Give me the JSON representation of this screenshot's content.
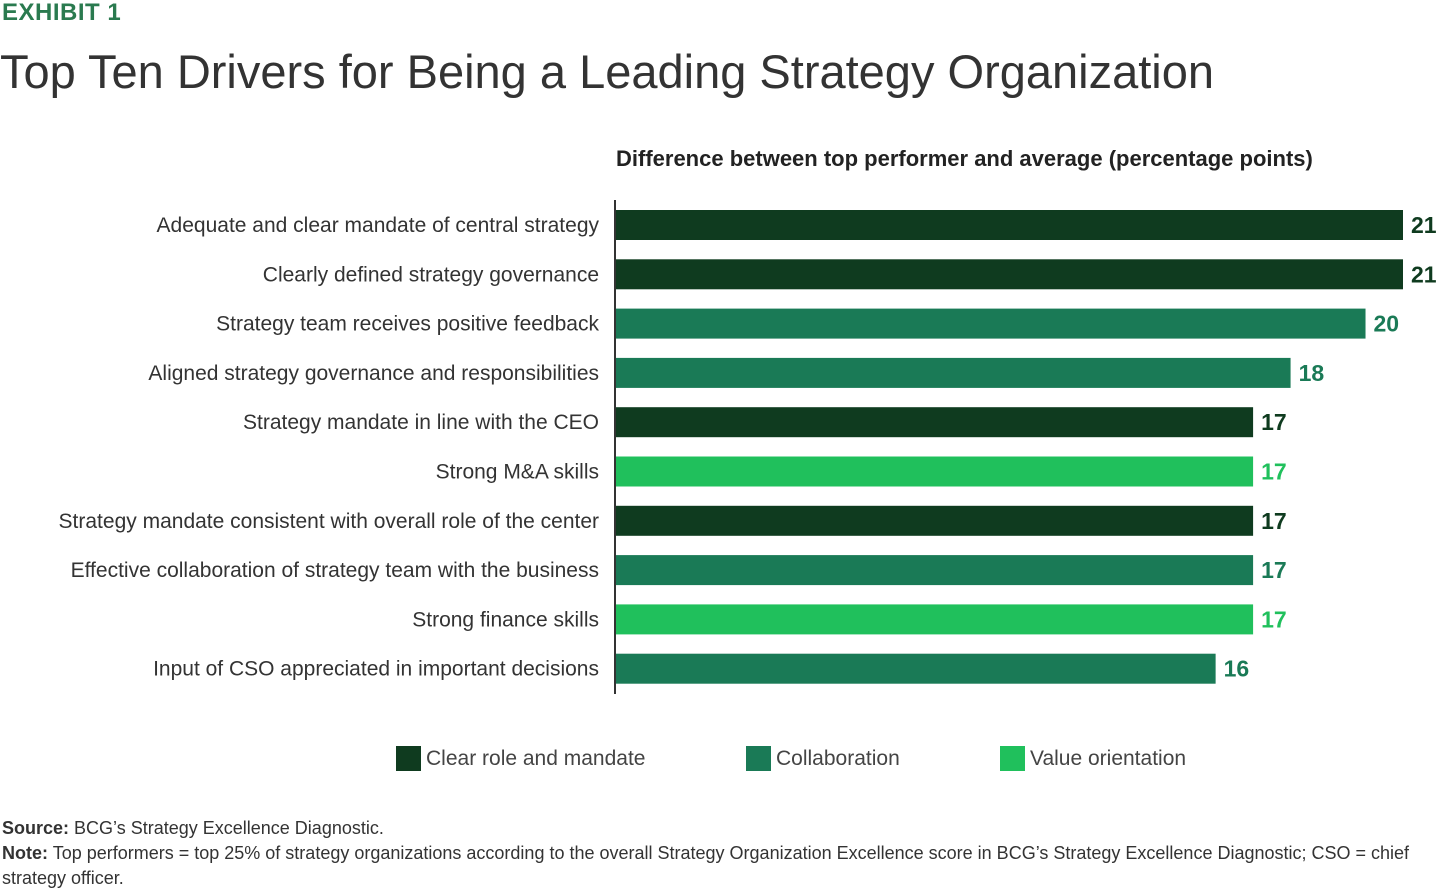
{
  "header": {
    "exhibit": "EXHIBIT 1",
    "title": "Top Ten Drivers for Being a Leading Strategy Organization"
  },
  "chart_data": {
    "type": "bar",
    "orientation": "horizontal",
    "title": "Difference between top performer and average (percentage points)",
    "xlabel": "",
    "ylabel": "",
    "xlim": [
      0,
      21
    ],
    "grid": false,
    "legend_position": "bottom",
    "categories": [
      "Adequate and clear mandate of central strategy",
      "Clearly defined strategy governance",
      "Strategy team receives positive feedback",
      "Aligned strategy governance and responsibilities",
      "Strategy mandate in line with the CEO",
      "Strong M&A skills",
      "Strategy mandate consistent with overall role of the center",
      "Effective collaboration of strategy team with the business",
      "Strong finance skills",
      "Input of CSO appreciated in important decisions"
    ],
    "values": [
      21,
      21,
      20,
      18,
      17,
      17,
      17,
      17,
      17,
      16
    ],
    "groups": [
      "clear",
      "clear",
      "collab",
      "collab",
      "clear",
      "value",
      "clear",
      "collab",
      "value",
      "collab"
    ],
    "legend": [
      {
        "key": "clear",
        "label": "Clear role and mandate",
        "color": "#0f3b1f"
      },
      {
        "key": "collab",
        "label": "Collaboration",
        "color": "#1a7a56"
      },
      {
        "key": "value",
        "label": "Value orientation",
        "color": "#20c05c"
      }
    ]
  },
  "footer": {
    "source_label": "Source:",
    "source_text": "BCG’s Strategy Excellence Diagnostic.",
    "note_label": "Note:",
    "note_text": "Top performers = top 25% of strategy organizations according to the overall Strategy Organization Excellence score in BCG’s Strategy Excellence Diagnostic; CSO = chief strategy officer."
  }
}
